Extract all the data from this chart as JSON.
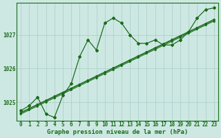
{
  "x": [
    0,
    1,
    2,
    3,
    4,
    5,
    6,
    7,
    8,
    9,
    10,
    11,
    12,
    13,
    14,
    15,
    16,
    17,
    18,
    19,
    20,
    21,
    22,
    23
  ],
  "volatile_line": [
    1024.75,
    1024.9,
    1025.15,
    1024.65,
    1024.55,
    1025.2,
    1025.55,
    1026.35,
    1026.85,
    1026.55,
    1027.35,
    1027.5,
    1027.35,
    1027.0,
    1026.75,
    1026.75,
    1026.85,
    1026.7,
    1026.7,
    1026.85,
    1027.1,
    1027.5,
    1027.75,
    1027.8
  ],
  "linear1": [
    1024.7,
    1024.82,
    1024.94,
    1025.06,
    1025.18,
    1025.3,
    1025.42,
    1025.54,
    1025.66,
    1025.78,
    1025.9,
    1026.02,
    1026.14,
    1026.26,
    1026.38,
    1026.5,
    1026.62,
    1026.74,
    1026.86,
    1026.98,
    1027.1,
    1027.22,
    1027.34,
    1027.46
  ],
  "linear2": [
    1024.68,
    1024.8,
    1024.92,
    1025.04,
    1025.16,
    1025.28,
    1025.4,
    1025.52,
    1025.64,
    1025.76,
    1025.88,
    1026.0,
    1026.12,
    1026.24,
    1026.36,
    1026.48,
    1026.6,
    1026.72,
    1026.84,
    1026.96,
    1027.08,
    1027.2,
    1027.32,
    1027.44
  ],
  "linear3": [
    1024.65,
    1024.77,
    1024.89,
    1025.01,
    1025.13,
    1025.25,
    1025.37,
    1025.49,
    1025.61,
    1025.73,
    1025.85,
    1025.97,
    1026.09,
    1026.21,
    1026.33,
    1026.45,
    1026.57,
    1026.69,
    1026.81,
    1026.93,
    1027.05,
    1027.17,
    1027.29,
    1027.41
  ],
  "ylim_min": 1024.45,
  "ylim_max": 1027.95,
  "yticks": [
    1025,
    1026,
    1027
  ],
  "ytick_labels": [
    "1025",
    "1026",
    "1027"
  ],
  "bg_color": "#cde8e3",
  "line_color": "#1a6b1a",
  "grid_color": "#aaccc6",
  "xlabel": "Graphe pression niveau de la mer (hPa)",
  "font_size_label": 6.5,
  "font_size_tick": 5.5
}
